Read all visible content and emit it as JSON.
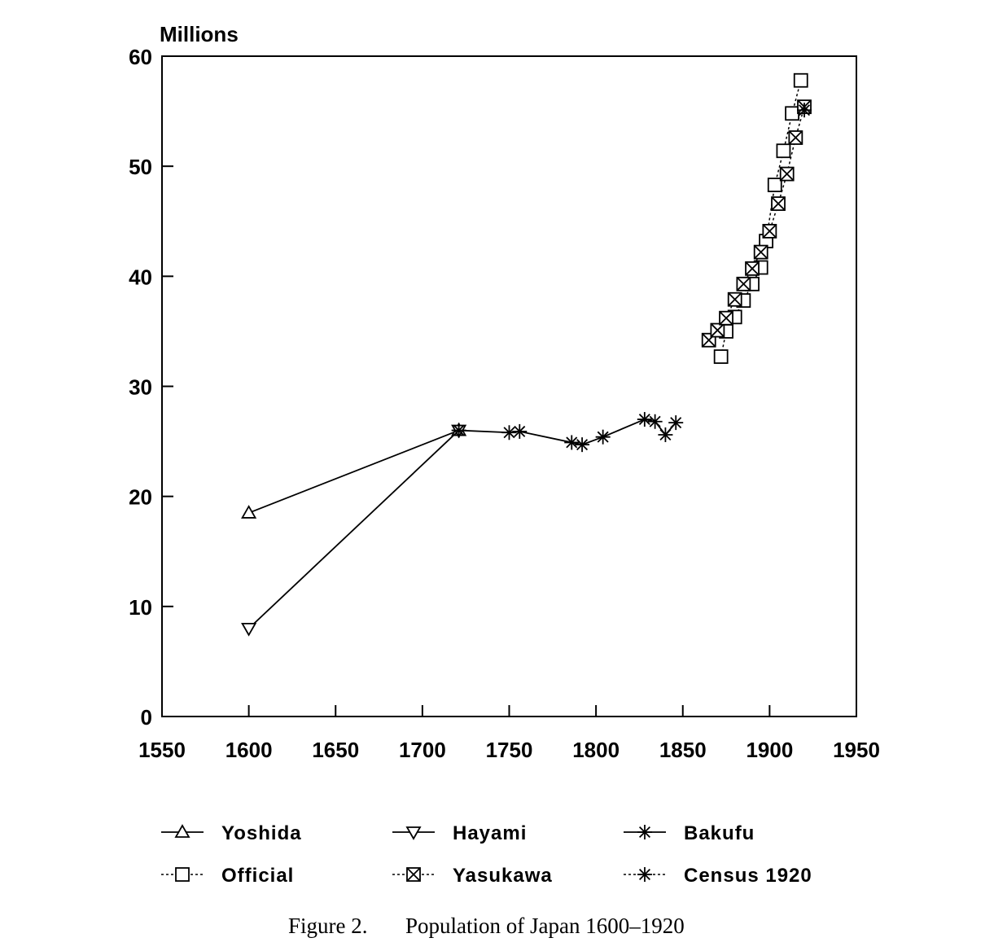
{
  "chart_data": {
    "type": "line",
    "ylabel": "Millions",
    "xlabel": "",
    "xlim": [
      1550,
      1950
    ],
    "ylim": [
      0,
      60
    ],
    "x_ticks": [
      1550,
      1600,
      1650,
      1700,
      1750,
      1800,
      1850,
      1900,
      1950
    ],
    "y_ticks": [
      0,
      10,
      20,
      30,
      40,
      50,
      60
    ],
    "grid": false,
    "legend_position": "bottom",
    "series": [
      {
        "name": "Yoshida",
        "marker": "triangle-up",
        "line": "solid",
        "points": [
          [
            1600,
            18.5
          ],
          [
            1721,
            26.0
          ]
        ]
      },
      {
        "name": "Hayami",
        "marker": "triangle-down",
        "line": "solid",
        "points": [
          [
            1600,
            8.0
          ],
          [
            1721,
            26.0
          ]
        ]
      },
      {
        "name": "Bakufu",
        "marker": "asterisk",
        "line": "solid",
        "points": [
          [
            1721,
            26.0
          ],
          [
            1750,
            25.8
          ],
          [
            1756,
            25.9
          ],
          [
            1786,
            24.9
          ],
          [
            1792,
            24.7
          ],
          [
            1804,
            25.4
          ],
          [
            1828,
            27.0
          ],
          [
            1834,
            26.8
          ],
          [
            1840,
            25.6
          ],
          [
            1846,
            26.7
          ]
        ]
      },
      {
        "name": "Official",
        "marker": "square",
        "line": "dotted",
        "points": [
          [
            1872,
            32.7
          ],
          [
            1875,
            35.0
          ],
          [
            1880,
            36.3
          ],
          [
            1885,
            37.8
          ],
          [
            1890,
            39.3
          ],
          [
            1895,
            40.8
          ],
          [
            1898,
            43.2
          ],
          [
            1903,
            48.3
          ],
          [
            1908,
            51.4
          ],
          [
            1913,
            54.8
          ],
          [
            1918,
            57.8
          ]
        ]
      },
      {
        "name": "Yasukawa",
        "marker": "square-x",
        "line": "dotted",
        "points": [
          [
            1865,
            34.2
          ],
          [
            1870,
            35.1
          ],
          [
            1875,
            36.2
          ],
          [
            1880,
            37.9
          ],
          [
            1885,
            39.3
          ],
          [
            1890,
            40.7
          ],
          [
            1895,
            42.2
          ],
          [
            1900,
            44.1
          ],
          [
            1905,
            46.6
          ],
          [
            1910,
            49.3
          ],
          [
            1915,
            52.6
          ],
          [
            1920,
            55.4
          ]
        ]
      },
      {
        "name": "Census 1920",
        "marker": "asterisk",
        "line": "dotted",
        "points": [
          [
            1920,
            55.1
          ]
        ]
      }
    ]
  },
  "caption": {
    "label": "Figure 2.",
    "text": "Population of Japan 1600–1920"
  }
}
